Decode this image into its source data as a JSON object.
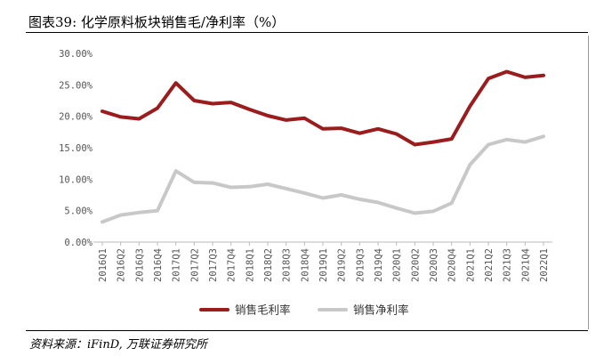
{
  "title": "图表39: 化学原料板块销售毛/净利率（%）",
  "source": "资料来源：iFinD, 万联证券研究所",
  "chart_data": {
    "type": "line",
    "categories": [
      "2016Q1",
      "2016Q2",
      "2016Q3",
      "2016Q4",
      "2017Q1",
      "2017Q2",
      "2017Q3",
      "2017Q4",
      "2018Q1",
      "2018Q2",
      "2018Q3",
      "2018Q4",
      "2019Q1",
      "2019Q2",
      "2019Q3",
      "2019Q4",
      "2020Q1",
      "2020Q2",
      "2020Q3",
      "2020Q4",
      "2021Q1",
      "2021Q2",
      "2021Q3",
      "2021Q4",
      "2022Q1"
    ],
    "y_ticks": [
      "0.00%",
      "5.00%",
      "10.00%",
      "15.00%",
      "20.00%",
      "25.00%",
      "30.00%"
    ],
    "ylim": [
      0,
      30
    ],
    "grid": false,
    "legend_position": "bottom",
    "series": [
      {
        "name": "销售毛利率",
        "color": "#9b1c1c",
        "values": [
          20.8,
          19.9,
          19.6,
          21.3,
          25.3,
          22.5,
          22.0,
          22.2,
          21.1,
          20.1,
          19.4,
          19.7,
          18.0,
          18.1,
          17.3,
          18.0,
          17.2,
          15.5,
          15.9,
          16.4,
          21.6,
          26.0,
          27.1,
          26.2,
          26.5
        ]
      },
      {
        "name": "销售净利率",
        "color": "#c8c8c8",
        "values": [
          3.2,
          4.3,
          4.7,
          5.0,
          11.3,
          9.5,
          9.4,
          8.7,
          8.8,
          9.2,
          8.5,
          7.8,
          7.0,
          7.5,
          6.8,
          6.3,
          5.4,
          4.6,
          4.9,
          6.2,
          12.3,
          15.5,
          16.3,
          15.9,
          16.8
        ]
      }
    ]
  }
}
